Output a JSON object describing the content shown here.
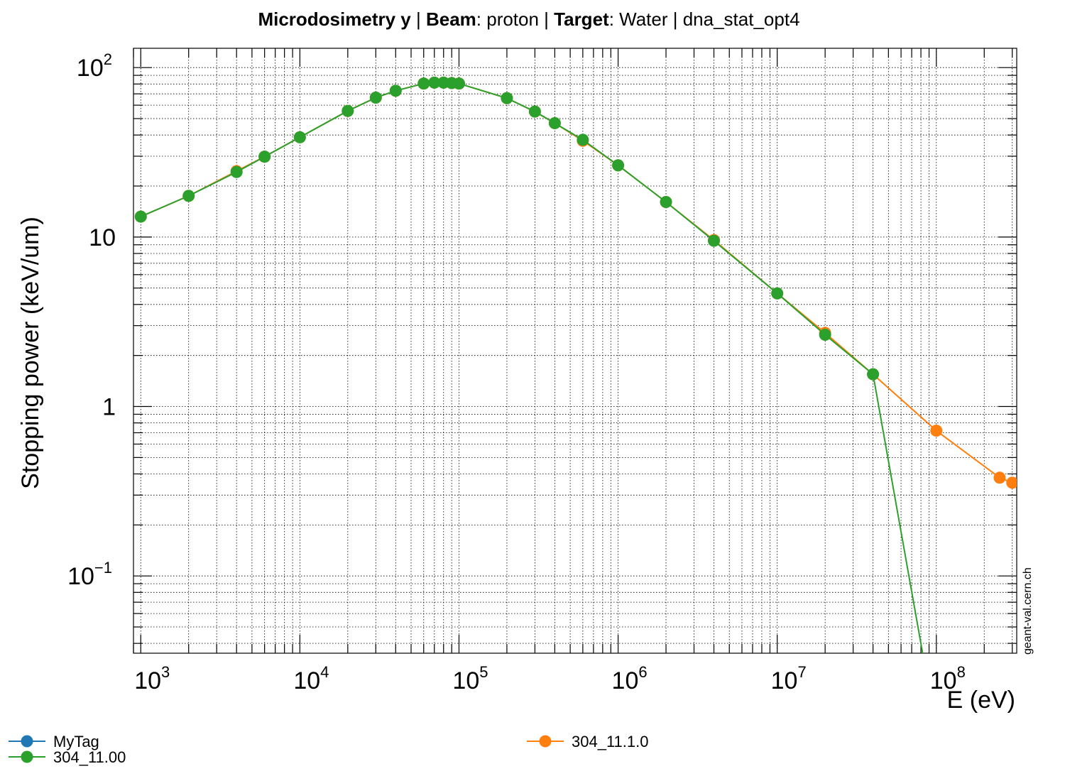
{
  "title_parts": [
    {
      "text": "Microdosimetry y ",
      "bold": true
    },
    {
      "text": " | ",
      "bold": false
    },
    {
      "text": "Beam",
      "bold": true
    },
    {
      "text": ": proton | ",
      "bold": false
    },
    {
      "text": "Target",
      "bold": true
    },
    {
      "text": ": Water | dna_stat_opt4",
      "bold": false
    }
  ],
  "watermark": "geant-val.cern.ch",
  "legend": [
    {
      "label": "MyTag",
      "color": "#1f77b4"
    },
    {
      "label": "304_11.00",
      "color": "#2ca02c"
    },
    {
      "label": "304_11.1.0",
      "color": "#ff7f0e"
    }
  ],
  "chart_data": {
    "type": "line",
    "xscale": "log",
    "yscale": "log",
    "xlim": [
      900,
      320000000
    ],
    "ylim": [
      0.035,
      130
    ],
    "xlabel": "E (eV)",
    "ylabel": "Stopping power (keV/um)",
    "grid": true,
    "x_ticks": [
      {
        "base": "10",
        "exp": "3",
        "value": 1000
      },
      {
        "base": "10",
        "exp": "4",
        "value": 10000
      },
      {
        "base": "10",
        "exp": "5",
        "value": 100000
      },
      {
        "base": "10",
        "exp": "6",
        "value": 1000000
      },
      {
        "base": "10",
        "exp": "7",
        "value": 10000000
      },
      {
        "base": "10",
        "exp": "8",
        "value": 100000000
      }
    ],
    "y_ticks": [
      {
        "base": "10",
        "exp": "−1",
        "value": 0.1
      },
      {
        "base": "1",
        "exp": "",
        "value": 1
      },
      {
        "base": "10",
        "exp": "",
        "value": 10
      },
      {
        "base": "10",
        "exp": "2",
        "value": 100
      }
    ],
    "series": [
      {
        "name": "304_11.1.0",
        "color": "#ff7f0e",
        "x": [
          1000,
          2000,
          4000,
          6000,
          10000,
          20000,
          30000,
          40000,
          60000,
          70000,
          80000,
          90000,
          100000,
          200000,
          300000,
          400000,
          600000,
          1000000,
          2000000,
          4000000,
          10000000,
          20000000,
          40000000,
          100000000,
          250000000,
          300000000
        ],
        "y": [
          13.2,
          17.5,
          24.5,
          29.8,
          38.8,
          55.5,
          66.5,
          73.0,
          80.5,
          81.5,
          81.5,
          81.0,
          80.5,
          66.0,
          55.0,
          47.0,
          37.0,
          26.5,
          16.1,
          9.6,
          4.65,
          2.72,
          1.55,
          0.72,
          0.38,
          0.355
        ]
      },
      {
        "name": "304_11.00",
        "color": "#2ca02c",
        "x": [
          1000,
          2000,
          4000,
          6000,
          10000,
          20000,
          30000,
          40000,
          60000,
          70000,
          80000,
          90000,
          100000,
          200000,
          300000,
          400000,
          600000,
          1000000,
          2000000,
          4000000,
          10000000,
          20000000,
          40000000,
          82000000
        ],
        "y": [
          13.2,
          17.5,
          24.2,
          29.8,
          38.8,
          55.5,
          66.5,
          73.0,
          80.5,
          81.5,
          81.5,
          81.0,
          80.5,
          66.0,
          55.0,
          47.0,
          37.5,
          26.5,
          16.1,
          9.5,
          4.65,
          2.65,
          1.55,
          0.035
        ]
      }
    ]
  }
}
